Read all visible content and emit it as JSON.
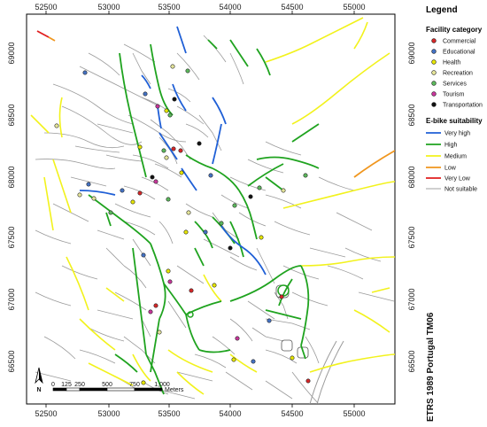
{
  "map": {
    "crs_label": "ETRS 1989 Portugal TM06",
    "x_ticks": [
      "52500",
      "53000",
      "53500",
      "54000",
      "54500",
      "55000"
    ],
    "y_ticks": [
      "69000",
      "68500",
      "68000",
      "67500",
      "67000",
      "66500"
    ],
    "north_arrow_label": "N",
    "scale_bar": {
      "labels": [
        "0",
        "125",
        "250",
        "500",
        "750",
        "1,000"
      ],
      "unit": "Meters"
    }
  },
  "legend": {
    "title": "Legend",
    "facility_title": "Facility category",
    "facility_items": [
      {
        "label": "Commercial",
        "color": "#d62728"
      },
      {
        "label": "Educational",
        "color": "#4472c4"
      },
      {
        "label": "Health",
        "color": "#e6e600"
      },
      {
        "label": "Recreation",
        "color": "#e5e59a"
      },
      {
        "label": "Services",
        "color": "#5cb85c"
      },
      {
        "label": "Tourism",
        "color": "#c8369b"
      },
      {
        "label": "Transportation",
        "color": "#111111"
      }
    ],
    "suitability_title": "E-bike suitability",
    "suitability_items": [
      {
        "label": "Very high",
        "color": "#1f5fd6"
      },
      {
        "label": "High",
        "color": "#1fa31f"
      },
      {
        "label": "Medium",
        "color": "#f0f01e"
      },
      {
        "label": "Low",
        "color": "#f0961e"
      },
      {
        "label": "Very Low",
        "color": "#e01e1e"
      },
      {
        "label": "Not suitable",
        "color": "#a0a0a0"
      }
    ]
  }
}
